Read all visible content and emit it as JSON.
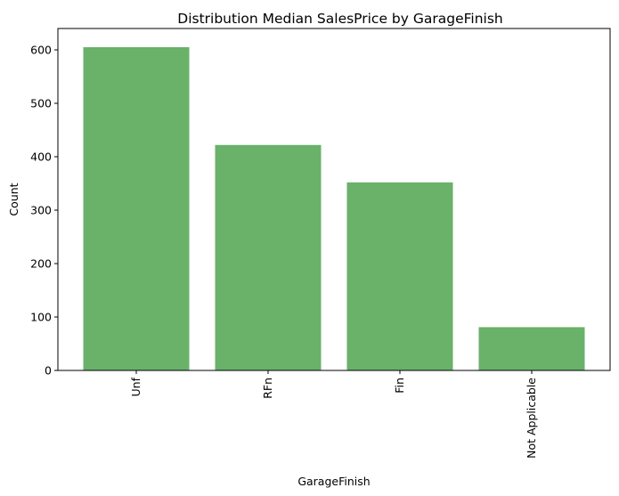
{
  "chart_data": {
    "type": "bar",
    "title": "Distribution Median SalesPrice by GarageFinish",
    "xlabel": "GarageFinish",
    "ylabel": "Count",
    "categories": [
      "Unf",
      "RFn",
      "Fin",
      "Not Applicable"
    ],
    "values": [
      605,
      422,
      352,
      81
    ],
    "ylim": [
      0,
      640
    ],
    "yticks": [
      0,
      100,
      200,
      300,
      400,
      500,
      600
    ],
    "bar_color": "#6ab16a",
    "grid": false,
    "legend": "none",
    "x_tick_rotation": "vertical"
  }
}
